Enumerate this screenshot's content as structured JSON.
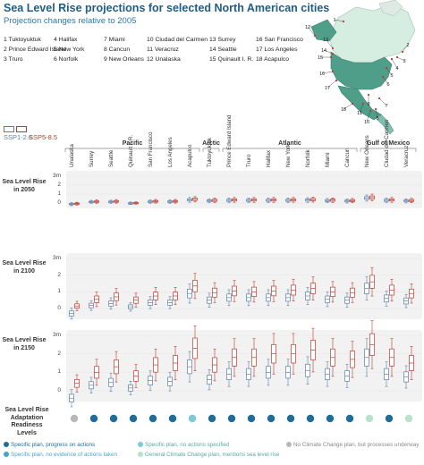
{
  "header": {
    "title": "Sea Level Rise projections for selected North American cities",
    "subtitle": "Projection changes relative to 2005"
  },
  "city_list": [
    {
      "label": "1 Tuktoyuktuk",
      "col": 0,
      "row": 0
    },
    {
      "label": "2 Prince Edward Island",
      "col": 0,
      "row": 1
    },
    {
      "label": "3 Truro",
      "col": 0,
      "row": 2
    },
    {
      "label": "4 Halifax",
      "col": 1,
      "row": 0
    },
    {
      "label": "5 New York",
      "col": 1,
      "row": 1
    },
    {
      "label": "6 Norfolk",
      "col": 1,
      "row": 2
    },
    {
      "label": "7 Miami",
      "col": 2,
      "row": 0
    },
    {
      "label": "8 Cancun",
      "col": 2,
      "row": 1
    },
    {
      "label": "9 New Orleans",
      "col": 2,
      "row": 2
    },
    {
      "label": "10 Ciudad del Carmen",
      "col": 3,
      "row": 0
    },
    {
      "label": "11 Veracruz",
      "col": 3,
      "row": 1
    },
    {
      "label": "12 Unalaska",
      "col": 3,
      "row": 2
    },
    {
      "label": "13 Surrey",
      "col": 4,
      "row": 0
    },
    {
      "label": "14 Seattle",
      "col": 4,
      "row": 1
    },
    {
      "label": "15 Quinault I. R.",
      "col": 4,
      "row": 2
    },
    {
      "label": "16 San Francisco",
      "col": 5,
      "row": 0
    },
    {
      "label": "17 Los Angeles",
      "col": 5,
      "row": 1
    },
    {
      "label": "18 Acapulco",
      "col": 5,
      "row": 2
    }
  ],
  "map_numbers": [
    "1",
    "2",
    "3",
    "4",
    "5",
    "6",
    "7",
    "8",
    "9",
    "10",
    "11",
    "12",
    "13",
    "14",
    "15",
    "16",
    "17",
    "18"
  ],
  "scenarios": {
    "ssp126": {
      "label": "SSP1-2.6",
      "color": "#5a7fa8"
    },
    "ssp585": {
      "label": "SSP5-8.5",
      "color": "#c0392b"
    }
  },
  "regions": [
    {
      "label": "Pacific",
      "start": 0,
      "end": 6
    },
    {
      "label": "Arctic",
      "start": 7,
      "end": 7
    },
    {
      "label": "Atlantic",
      "start": 8,
      "end": 14
    },
    {
      "label": "Gulf of Mexico",
      "start": 15,
      "end": 17
    }
  ],
  "row_labels": {
    "r2050": "Sea Level Rise in 2050",
    "r2100": "Sea Level Rise in 2100",
    "r2150": "Sea Level Rise in 2150",
    "readiness": "Sea Level Rise Adaptation Readiness Levels"
  },
  "y_ticks": [
    "3m",
    "2",
    "1",
    "0"
  ],
  "chart_data": {
    "type": "box",
    "title": "Sea Level Rise projections for selected North American cities",
    "subtitle": "Projection changes relative to 2005",
    "ylabel": "Sea Level Rise",
    "ylim": [
      -0.5,
      3
    ],
    "categories": [
      "Unalaska",
      "Surrey",
      "Seattle",
      "Quinault I. R.",
      "San Francisco",
      "Los Angeles",
      "Acapulco",
      "Tuktoyuktuk",
      "Prince Edward Island",
      "Truro",
      "Halifax",
      "New York",
      "Norfolk",
      "Miami",
      "Cancun",
      "New Orleans",
      "Ciudad del Carmen",
      "Veracruz"
    ],
    "panels": [
      {
        "name": "2050",
        "series": [
          {
            "name": "SSP1-2.6",
            "values": [
              -0.12,
              0.12,
              0.13,
              -0.03,
              0.15,
              0.15,
              0.35,
              0.25,
              0.3,
              0.3,
              0.3,
              0.3,
              0.33,
              0.27,
              0.22,
              0.55,
              0.3,
              0.23
            ]
          },
          {
            "name": "SSP5-8.5",
            "values": [
              -0.08,
              0.16,
              0.18,
              0.0,
              0.19,
              0.19,
              0.42,
              0.3,
              0.35,
              0.35,
              0.35,
              0.35,
              0.38,
              0.32,
              0.27,
              0.62,
              0.35,
              0.28
            ]
          }
        ]
      },
      {
        "name": "2100",
        "series": [
          {
            "name": "SSP1-2.6",
            "values": [
              -0.3,
              0.18,
              0.3,
              0.1,
              0.35,
              0.35,
              0.9,
              0.5,
              0.65,
              0.65,
              0.65,
              0.65,
              0.75,
              0.55,
              0.5,
              1.2,
              0.6,
              0.45
            ]
          },
          {
            "name": "SSP5-8.5",
            "values": [
              0.15,
              0.55,
              0.7,
              0.5,
              0.75,
              0.75,
              1.35,
              0.95,
              1.05,
              1.0,
              1.05,
              1.1,
              1.2,
              1.0,
              0.95,
              1.6,
              1.1,
              0.9
            ]
          }
        ]
      },
      {
        "name": "2150",
        "series": [
          {
            "name": "SSP1-2.6",
            "values": [
              -0.4,
              0.3,
              0.45,
              0.15,
              0.55,
              0.5,
              1.3,
              0.6,
              0.9,
              0.9,
              1.0,
              1.0,
              1.1,
              0.9,
              0.8,
              1.8,
              0.9,
              0.75
            ]
          },
          {
            "name": "SSP5-8.5",
            "values": [
              0.4,
              1.0,
              1.3,
              0.8,
              1.4,
              1.5,
              2.3,
              1.4,
              1.8,
              1.8,
              2.0,
              2.0,
              2.2,
              1.8,
              1.7,
              2.5,
              1.8,
              1.5
            ]
          }
        ]
      }
    ],
    "readiness": [
      "none",
      "specific-progress",
      "specific-progress",
      "specific-progress",
      "specific-progress",
      "specific-progress",
      "specific-no-actions",
      "specific-progress",
      "specific-progress",
      "specific-progress",
      "specific-progress",
      "specific-progress",
      "specific-progress",
      "specific-progress",
      "specific-progress",
      "general",
      "specific-progress",
      "general"
    ]
  },
  "readiness_legend": [
    {
      "key": "specific-progress",
      "label": "Specific plan, progress on actions",
      "color": "#1f6d99"
    },
    {
      "key": "specific-no-evidence",
      "label": "Specific plan, no evidence of actions taken",
      "color": "#4aa3c7"
    },
    {
      "key": "specific-no-actions",
      "label": "Specific plan, no actions specified",
      "color": "#7ec9d8"
    },
    {
      "key": "general",
      "label": "General Climate Change plan, mentions sea level rise",
      "color": "#b7e2cd"
    },
    {
      "key": "none",
      "label": "No Climate Change plan, but processes underway",
      "color": "#b8b8b8"
    }
  ]
}
